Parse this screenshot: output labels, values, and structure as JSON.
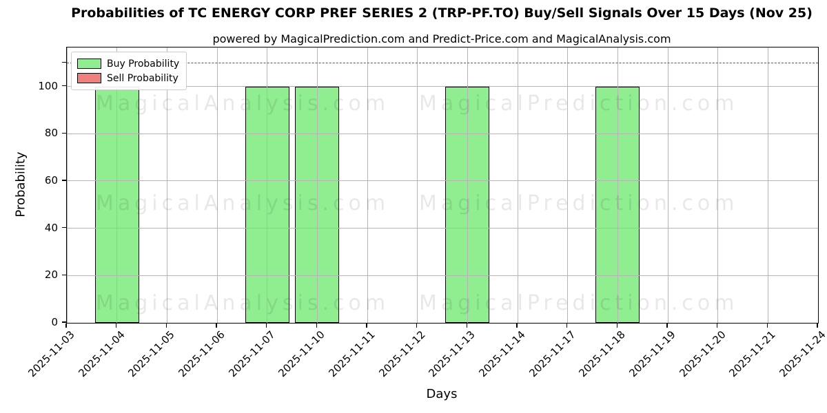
{
  "chart_data": {
    "type": "bar",
    "title": "Probabilities of TC ENERGY CORP PREF SERIES 2 (TRP-PF.TO) Buy/Sell Signals Over 15 Days (Nov 25)",
    "subtitle": "powered by MagicalPrediction.com and Predict-Price.com and MagicalAnalysis.com",
    "xlabel": "Days",
    "ylabel": "Probability",
    "categories": [
      "2025-11-03",
      "2025-11-04",
      "2025-11-05",
      "2025-11-06",
      "2025-11-07",
      "2025-11-10",
      "2025-11-11",
      "2025-11-12",
      "2025-11-13",
      "2025-11-14",
      "2025-11-17",
      "2025-11-18",
      "2025-11-19",
      "2025-11-20",
      "2025-11-21",
      "2025-11-24"
    ],
    "series": [
      {
        "name": "Buy Probability",
        "color": "#90ee90",
        "values": [
          0,
          100,
          0,
          0,
          100,
          100,
          0,
          0,
          100,
          0,
          0,
          100,
          0,
          0,
          0,
          0
        ]
      },
      {
        "name": "Sell Probability",
        "color": "#f08080",
        "values": [
          0,
          0,
          0,
          0,
          0,
          0,
          0,
          0,
          0,
          0,
          0,
          0,
          0,
          0,
          0,
          0
        ]
      }
    ],
    "yticks": [
      0,
      20,
      40,
      60,
      80,
      100
    ],
    "ylim": [
      0,
      116.5
    ],
    "threshold_line": {
      "y": 110,
      "style": "dashed",
      "color": "#555555"
    },
    "grid": true,
    "legend_position": "upper-left",
    "bar_edge_color": "#000000",
    "watermarks": {
      "left_text": "MagicalAnalysis.com",
      "right_text": "MagicalPrediction.com",
      "opacity_color": "rgba(0,0,0,0.09)"
    }
  }
}
